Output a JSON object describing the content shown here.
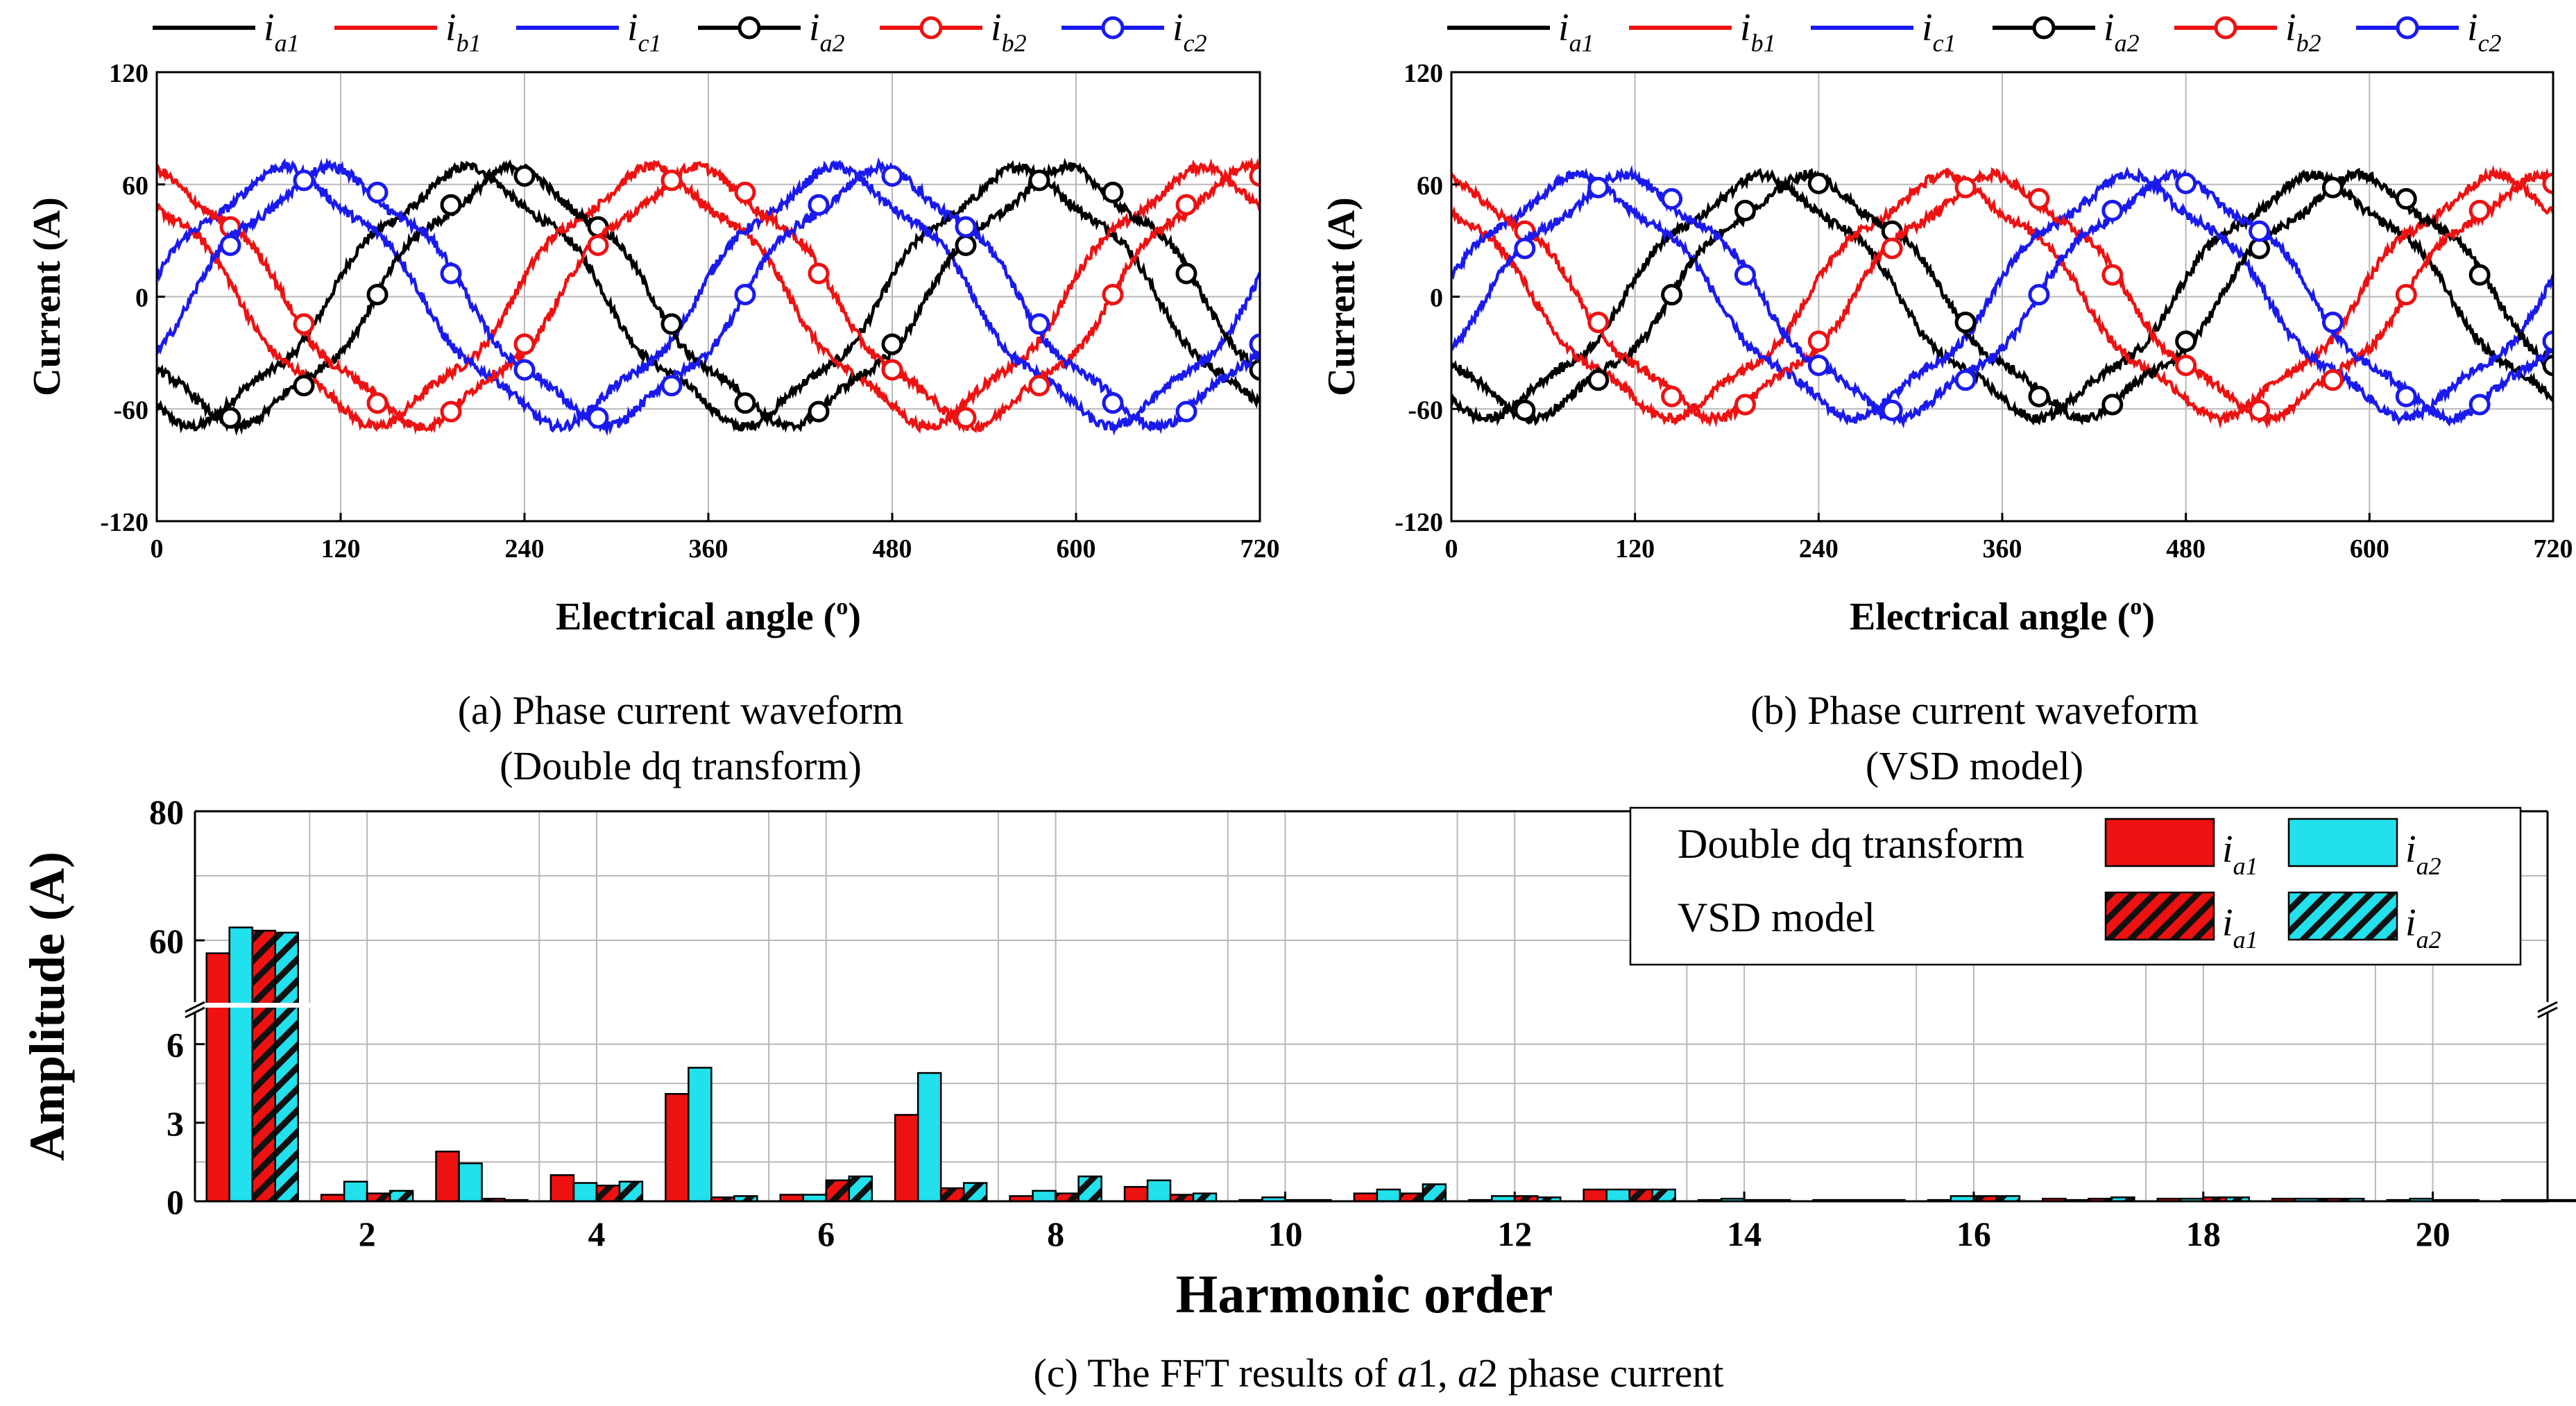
{
  "colors": {
    "a": "#000000",
    "b": "#ee1111",
    "c": "#1a1aee",
    "bar_i1": "#ee1111",
    "bar_i2": "#22e0ec",
    "grid": "#b8b8b8"
  },
  "legend_waveform": [
    {
      "sym": "i",
      "sub": "a1",
      "color": "#000000",
      "marker": false
    },
    {
      "sym": "i",
      "sub": "b1",
      "color": "#ee1111",
      "marker": false
    },
    {
      "sym": "i",
      "sub": "c1",
      "color": "#1a1aee",
      "marker": false
    },
    {
      "sym": "i",
      "sub": "a2",
      "color": "#000000",
      "marker": true
    },
    {
      "sym": "i",
      "sub": "b2",
      "color": "#ee1111",
      "marker": true
    },
    {
      "sym": "i",
      "sub": "c2",
      "color": "#1a1aee",
      "marker": true
    }
  ],
  "chart_data": [
    {
      "id": "a",
      "type": "line",
      "caption": [
        "(a) Phase current waveform",
        "(Double dq transform)"
      ],
      "xlabel": "Electrical angle (",
      "xlabel_sup": "o",
      "xlabel_end": ")",
      "ylabel": "Current (A)",
      "xlim": [
        0,
        720
      ],
      "ylim": [
        -120,
        120
      ],
      "xticks": [
        0,
        120,
        240,
        360,
        480,
        600,
        720
      ],
      "yticks": [
        -120,
        -60,
        0,
        60,
        120
      ],
      "series": [
        {
          "name": "ia1",
          "amplitude": 65,
          "phase_deg": -113,
          "color": "#000000",
          "marker": false
        },
        {
          "name": "ib1",
          "amplitude": 65,
          "phase_deg": 127,
          "color": "#ee1111",
          "marker": false
        },
        {
          "name": "ic1",
          "amplitude": 65,
          "phase_deg": 7,
          "color": "#1a1aee",
          "marker": false
        },
        {
          "name": "ia2",
          "amplitude": 65,
          "phase_deg": -143,
          "color": "#000000",
          "marker": true
        },
        {
          "name": "ib2",
          "amplitude": 65,
          "phase_deg": 97,
          "color": "#ee1111",
          "marker": true
        },
        {
          "name": "ic2",
          "amplitude": 65,
          "phase_deg": -23,
          "color": "#1a1aee",
          "marker": true
        }
      ]
    },
    {
      "id": "b",
      "type": "line",
      "caption": [
        "(b) Phase current waveform",
        "(VSD model)"
      ],
      "xlabel": "Electrical angle (",
      "xlabel_sup": "o",
      "xlabel_end": ")",
      "ylabel": "Current (A)",
      "xlim": [
        0,
        720
      ],
      "ylim": [
        -120,
        120
      ],
      "xticks": [
        0,
        120,
        240,
        360,
        480,
        600,
        720
      ],
      "yticks": [
        -120,
        -60,
        0,
        60,
        120
      ],
      "series": [
        {
          "name": "ia1",
          "amplitude": 61,
          "phase_deg": -113,
          "color": "#000000",
          "marker": false
        },
        {
          "name": "ib1",
          "amplitude": 61,
          "phase_deg": 127,
          "color": "#ee1111",
          "marker": false
        },
        {
          "name": "ic1",
          "amplitude": 61,
          "phase_deg": 7,
          "color": "#1a1aee",
          "marker": false
        },
        {
          "name": "ia2",
          "amplitude": 61,
          "phase_deg": -143,
          "color": "#000000",
          "marker": true
        },
        {
          "name": "ib2",
          "amplitude": 61,
          "phase_deg": 97,
          "color": "#ee1111",
          "marker": true
        },
        {
          "name": "ic2",
          "amplitude": 61,
          "phase_deg": -23,
          "color": "#1a1aee",
          "marker": true
        }
      ]
    },
    {
      "id": "c",
      "type": "bar",
      "caption": [
        "(c) The FFT results of ",
        "a",
        "1, ",
        "a",
        "2 phase current"
      ],
      "xlabel": "Harmonic order",
      "ylabel": "Amplitude (A)",
      "xlim": [
        0.5,
        21
      ],
      "xticks": [
        2,
        4,
        6,
        8,
        10,
        12,
        14,
        16,
        18,
        20
      ],
      "y_lower_range": [
        0,
        7.5
      ],
      "y_lower_ticks": [
        0,
        3,
        6
      ],
      "y_upper_range": [
        50,
        80
      ],
      "y_upper_ticks": [
        60,
        80
      ],
      "legend": {
        "rows": [
          {
            "label": "Double dq transform",
            "items": [
              "a1",
              "a2"
            ],
            "hatched": false
          },
          {
            "label": "VSD model",
            "items": [
              "a1",
              "a2"
            ],
            "hatched": true
          }
        ]
      },
      "categories": [
        1,
        2,
        3,
        4,
        5,
        6,
        7,
        8,
        9,
        10,
        11,
        12,
        13,
        14,
        15,
        16,
        17,
        18,
        19,
        20,
        21
      ],
      "series": [
        {
          "name": "Double dq transform i_a1",
          "values": [
            58.0,
            0.25,
            1.9,
            1.0,
            4.1,
            0.25,
            3.3,
            0.2,
            0.55,
            0.05,
            0.3,
            0.05,
            0.45,
            0.05,
            0.05,
            0.05,
            0.1,
            0.1,
            0.1,
            0.05,
            0.05
          ]
        },
        {
          "name": "Double dq transform i_a2",
          "values": [
            62.0,
            0.75,
            1.45,
            0.7,
            5.1,
            0.25,
            4.9,
            0.4,
            0.8,
            0.15,
            0.45,
            0.2,
            0.45,
            0.1,
            0.05,
            0.2,
            0.05,
            0.1,
            0.1,
            0.1,
            0.05
          ]
        },
        {
          "name": "VSD model i_a1",
          "values": [
            61.5,
            0.3,
            0.1,
            0.6,
            0.15,
            0.8,
            0.5,
            0.3,
            0.25,
            0.05,
            0.3,
            0.2,
            0.45,
            0.05,
            0.05,
            0.2,
            0.1,
            0.15,
            0.1,
            0.05,
            0.05
          ]
        },
        {
          "name": "VSD model i_a2",
          "values": [
            61.2,
            0.4,
            0.05,
            0.75,
            0.2,
            0.95,
            0.7,
            0.95,
            0.3,
            0.05,
            0.65,
            0.15,
            0.45,
            0.05,
            0.05,
            0.2,
            0.15,
            0.15,
            0.1,
            0.05,
            0.05
          ]
        }
      ]
    }
  ]
}
